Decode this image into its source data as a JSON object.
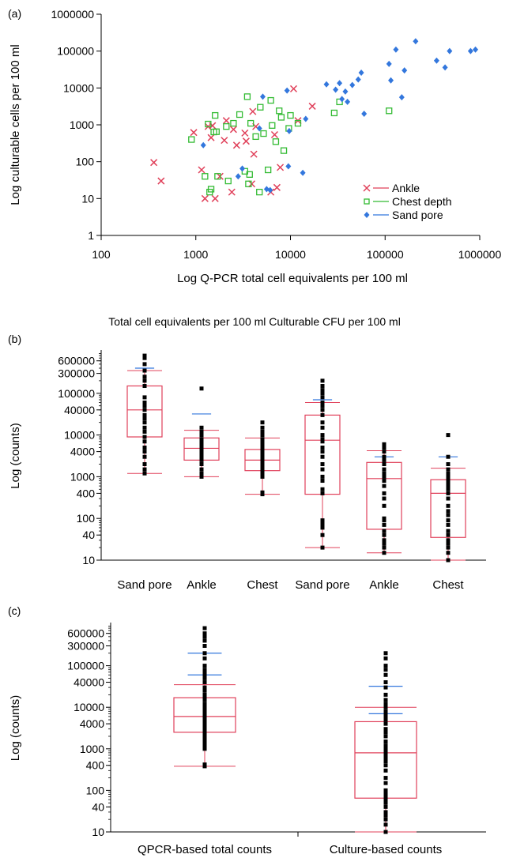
{
  "chart_data": [
    {
      "panel": "(a)",
      "type": "scatter",
      "xlabel": "Log Q-PCR total cell equivalents per 100 ml",
      "ylabel": "Log culturable cells per 100 ml",
      "xscale": "log",
      "yscale": "log",
      "xlim": [
        100,
        1000000
      ],
      "ylim": [
        1,
        1000000
      ],
      "xticks": [
        "100",
        "1000",
        "10000",
        "100000",
        "1000000"
      ],
      "yticks": [
        "1",
        "10",
        "100",
        "1000",
        "10000",
        "100000",
        "1000000"
      ],
      "legend_position": "bottom-right",
      "series": [
        {
          "name": "Ankle",
          "color": "#e0405a",
          "marker": "x",
          "points": [
            [
              360,
              95
            ],
            [
              430,
              30
            ],
            [
              950,
              620
            ],
            [
              1150,
              60
            ],
            [
              1250,
              10
            ],
            [
              1350,
              900
            ],
            [
              1450,
              450
            ],
            [
              1500,
              950
            ],
            [
              1600,
              10
            ],
            [
              1800,
              40
            ],
            [
              2000,
              380
            ],
            [
              2100,
              1300
            ],
            [
              2400,
              15
            ],
            [
              2500,
              750
            ],
            [
              2700,
              280
            ],
            [
              3300,
              600
            ],
            [
              3400,
              360
            ],
            [
              3900,
              25
            ],
            [
              4000,
              2300
            ],
            [
              4100,
              160
            ],
            [
              4300,
              900
            ],
            [
              6200,
              15
            ],
            [
              6800,
              540
            ],
            [
              7200,
              20
            ],
            [
              7800,
              70
            ],
            [
              10800,
              9500
            ],
            [
              12000,
              1300
            ],
            [
              17000,
              3200
            ]
          ]
        },
        {
          "name": "Chest depth",
          "color": "#33bb33",
          "marker": "square",
          "points": [
            [
              900,
              400
            ],
            [
              1250,
              40
            ],
            [
              1350,
              1050
            ],
            [
              1400,
              15
            ],
            [
              1450,
              18
            ],
            [
              1550,
              640
            ],
            [
              1600,
              1800
            ],
            [
              1650,
              650
            ],
            [
              1700,
              40
            ],
            [
              2100,
              900
            ],
            [
              2200,
              30
            ],
            [
              2500,
              1100
            ],
            [
              2900,
              1900
            ],
            [
              3300,
              55
            ],
            [
              3500,
              5800
            ],
            [
              3600,
              25
            ],
            [
              3700,
              45
            ],
            [
              3800,
              1100
            ],
            [
              4300,
              480
            ],
            [
              4700,
              15
            ],
            [
              4800,
              3000
            ],
            [
              5200,
              580
            ],
            [
              5800,
              60
            ],
            [
              6200,
              4600
            ],
            [
              6400,
              960
            ],
            [
              7000,
              350
            ],
            [
              7600,
              2400
            ],
            [
              8000,
              1600
            ],
            [
              8500,
              200
            ],
            [
              9600,
              800
            ],
            [
              10000,
              1800
            ],
            [
              12000,
              1100
            ],
            [
              29000,
              2100
            ],
            [
              33000,
              4200
            ],
            [
              110000,
              2400
            ]
          ]
        },
        {
          "name": "Sand pore",
          "color": "#3377dd",
          "marker": "diamond",
          "points": [
            [
              1200,
              280
            ],
            [
              2800,
              40
            ],
            [
              3100,
              65
            ],
            [
              4700,
              800
            ],
            [
              5100,
              5800
            ],
            [
              5600,
              18
            ],
            [
              6100,
              17
            ],
            [
              9200,
              8500
            ],
            [
              9500,
              75
            ],
            [
              9700,
              680
            ],
            [
              13500,
              50
            ],
            [
              14500,
              1450
            ],
            [
              24000,
              12500
            ],
            [
              30000,
              9000
            ],
            [
              33000,
              13500
            ],
            [
              35000,
              5000
            ],
            [
              38000,
              8000
            ],
            [
              40000,
              4200
            ],
            [
              45000,
              12000
            ],
            [
              52000,
              17000
            ],
            [
              56000,
              26000
            ],
            [
              60000,
              2000
            ],
            [
              110000,
              45000
            ],
            [
              115000,
              16000
            ],
            [
              130000,
              110000
            ],
            [
              150000,
              5600
            ],
            [
              160000,
              30000
            ],
            [
              210000,
              185000
            ],
            [
              350000,
              55000
            ],
            [
              430000,
              36000
            ],
            [
              480000,
              100000
            ],
            [
              800000,
              100000
            ],
            [
              900000,
              110000
            ]
          ]
        }
      ]
    },
    {
      "panel": "(b)",
      "type": "box",
      "title": "Total cell equivalents per 100 ml Culturable CFU per 100 ml",
      "ylabel": "Log (counts)",
      "yscale": "log",
      "ylim": [
        10,
        1000000
      ],
      "yticks": [
        "10",
        "40",
        "100",
        "400",
        "1000",
        "4000",
        "10000",
        "40000",
        "100000",
        "300000",
        "600000"
      ],
      "categories": [
        "Sand pore",
        "Ankle",
        "Chest",
        "Sand pore",
        "Ankle",
        "Chest"
      ],
      "boxes": [
        {
          "min": 1200,
          "q1": 9000,
          "median": 40000,
          "q3": 150000,
          "max": 350000,
          "mean_line": 400000
        },
        {
          "min": 1000,
          "q1": 2500,
          "median": 4800,
          "q3": 8500,
          "max": 13000,
          "mean_line": 32000
        },
        {
          "min": 380,
          "q1": 1400,
          "median": 2500,
          "q3": 4500,
          "max": 8500,
          "mean_line": null
        },
        {
          "min": 20,
          "q1": 380,
          "median": 7500,
          "q3": 30000,
          "max": 60000,
          "mean_line": 70000
        },
        {
          "min": 15,
          "q1": 55,
          "median": 900,
          "q3": 2200,
          "max": 4200,
          "mean_line": 3000
        },
        {
          "min": 10,
          "q1": 35,
          "median": 400,
          "q3": 850,
          "max": 1600,
          "mean_line": 3000
        }
      ],
      "points": [
        [
          1200,
          1500,
          2000,
          3000,
          4000,
          5000,
          7000,
          9000,
          12000,
          15000,
          20000,
          25000,
          30000,
          40000,
          50000,
          60000,
          80000,
          150000,
          200000,
          250000,
          350000,
          500000,
          700000,
          800000
        ],
        [
          1000,
          1200,
          1500,
          2000,
          2500,
          3000,
          3500,
          4000,
          4500,
          5000,
          6000,
          7000,
          8000,
          10000,
          12000,
          15000,
          130000
        ],
        [
          380,
          420,
          1000,
          1200,
          1400,
          1600,
          1800,
          2000,
          2200,
          2500,
          2800,
          3200,
          3600,
          4000,
          4500,
          5000,
          6000,
          7000,
          8000,
          10000,
          12000,
          15000,
          20000
        ],
        [
          20,
          40,
          60,
          70,
          80,
          90,
          400,
          500,
          800,
          1000,
          1500,
          2000,
          3000,
          4000,
          5000,
          7000,
          8000,
          10000,
          15000,
          20000,
          30000,
          40000,
          50000,
          60000,
          80000,
          100000,
          120000,
          150000,
          200000
        ],
        [
          15,
          20,
          25,
          30,
          40,
          50,
          70,
          90,
          100,
          200,
          300,
          400,
          600,
          800,
          1000,
          1200,
          1500,
          2000,
          2500,
          3000,
          4000,
          5000,
          6000
        ],
        [
          10,
          15,
          20,
          25,
          30,
          40,
          50,
          70,
          90,
          120,
          150,
          200,
          300,
          400,
          500,
          600,
          700,
          800,
          900,
          1000,
          1200,
          1500,
          2000,
          3000,
          10000
        ]
      ]
    },
    {
      "panel": "(c)",
      "type": "box",
      "ylabel": "Log (counts)",
      "yscale": "log",
      "ylim": [
        10,
        1000000
      ],
      "yticks": [
        "10",
        "40",
        "100",
        "400",
        "1000",
        "4000",
        "10000",
        "40000",
        "100000",
        "300000",
        "600000"
      ],
      "categories": [
        "QPCR-based total counts",
        "Culture-based counts"
      ],
      "boxes": [
        {
          "min": 380,
          "q1": 2500,
          "median": 6000,
          "q3": 17000,
          "max": 35000,
          "mean_line": 60000,
          "mean_line2": 200000
        },
        {
          "min": 10,
          "q1": 65,
          "median": 800,
          "q3": 4500,
          "max": 10000,
          "mean_line": 32000,
          "mean_line2": 7000
        }
      ],
      "points": [
        [
          380,
          420,
          1000,
          1200,
          1400,
          1600,
          1800,
          2000,
          2200,
          2500,
          2800,
          3000,
          3500,
          4000,
          4500,
          5000,
          6000,
          7000,
          8000,
          9000,
          10000,
          12000,
          15000,
          18000,
          20000,
          25000,
          30000,
          40000,
          50000,
          60000,
          70000,
          80000,
          100000,
          150000,
          200000,
          300000,
          400000,
          500000,
          600000,
          800000
        ],
        [
          10,
          15,
          20,
          25,
          30,
          40,
          50,
          60,
          70,
          80,
          90,
          100,
          150,
          200,
          300,
          400,
          500,
          600,
          700,
          800,
          900,
          1000,
          1200,
          1500,
          2000,
          2500,
          3000,
          4000,
          5000,
          6000,
          7000,
          8000,
          10000,
          12000,
          15000,
          20000,
          30000,
          40000,
          60000,
          80000,
          100000,
          150000,
          200000
        ]
      ]
    }
  ]
}
